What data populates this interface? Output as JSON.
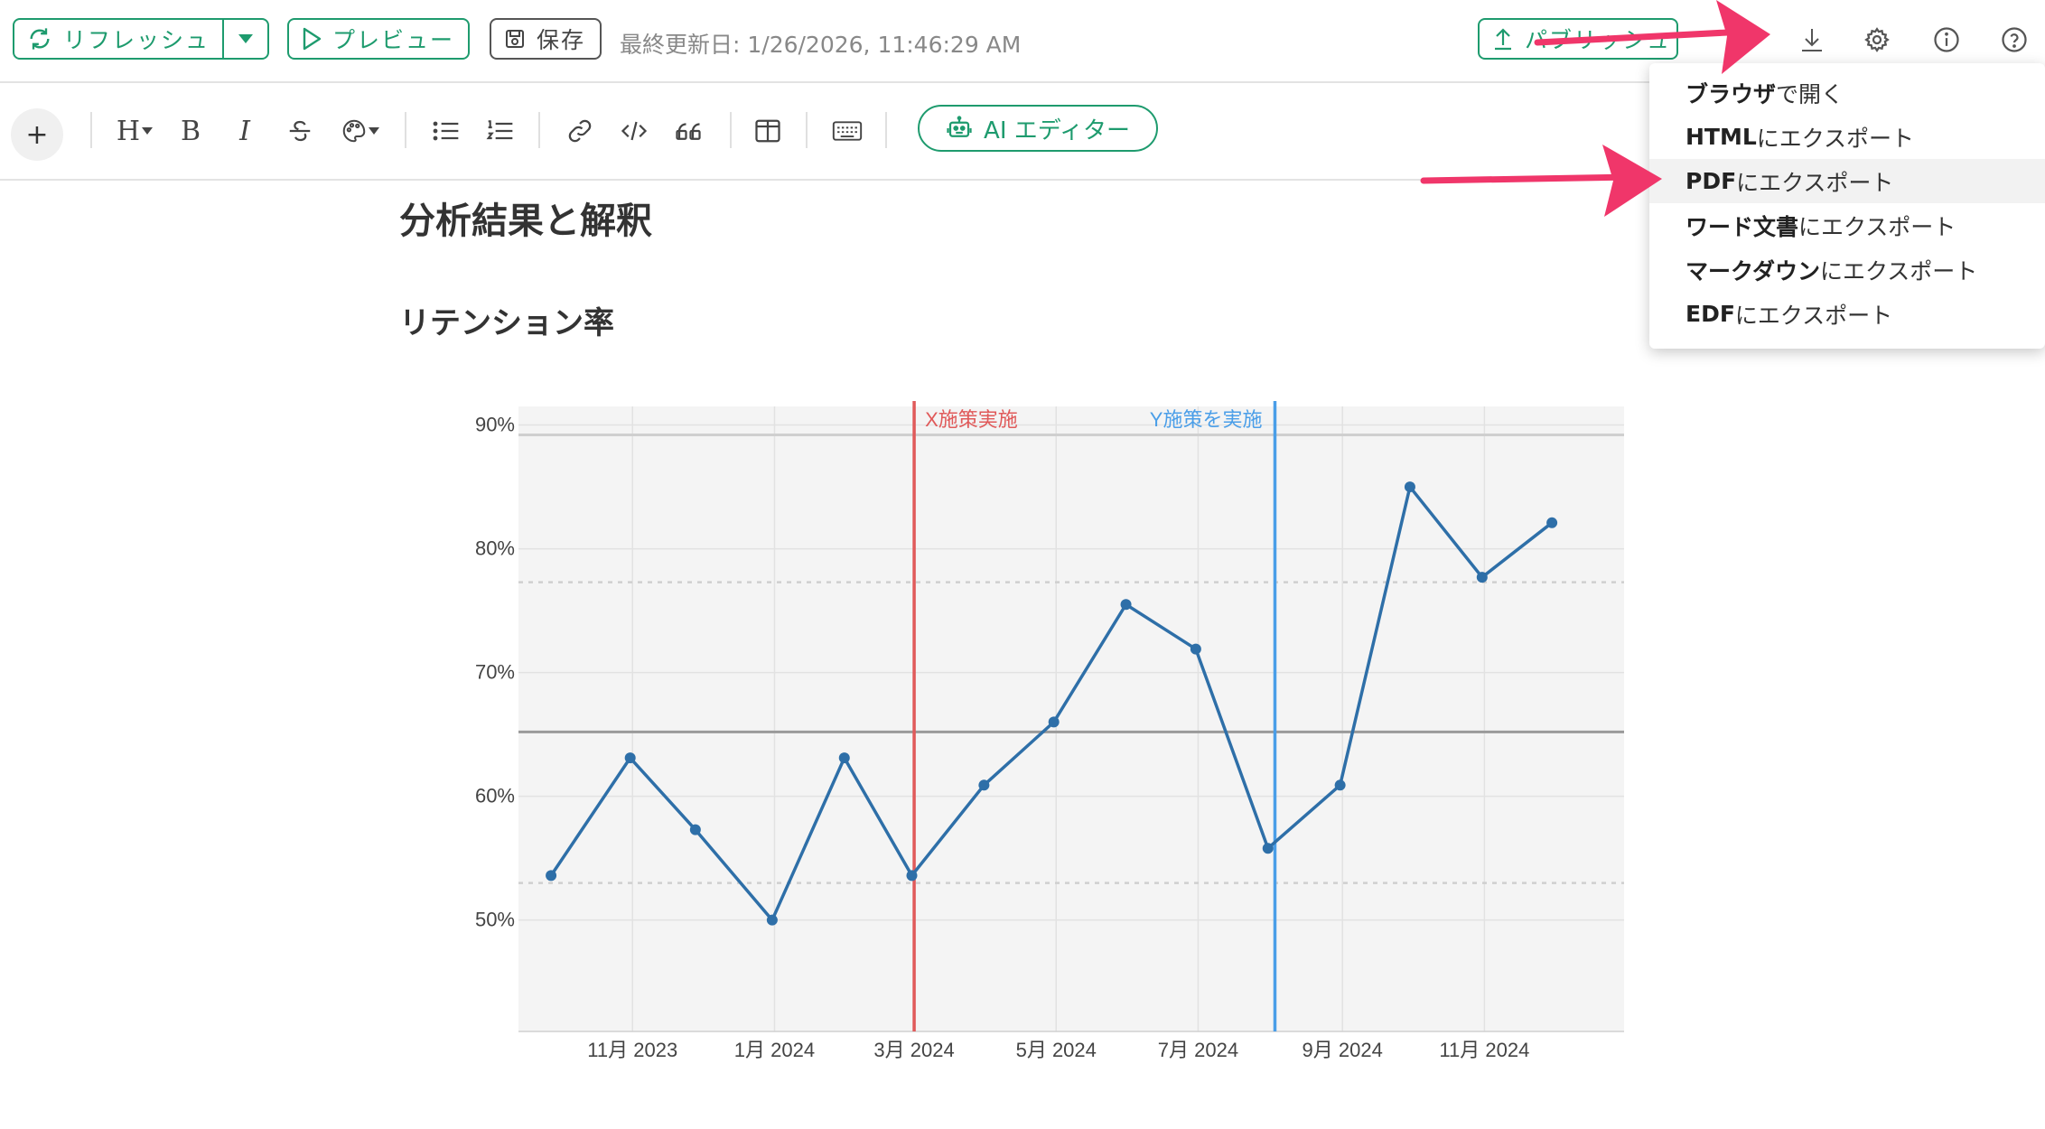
{
  "toolbar": {
    "refresh_label": "リフレッシュ",
    "preview_label": "プレビュー",
    "save_label": "保存",
    "last_updated": "最終更新日: 1/26/2026, 11:46:29 AM",
    "publish_label": "パブリッシュ"
  },
  "editor_toolbar": {
    "heading_label": "H",
    "bold_label": "B",
    "italic_label": "I",
    "ai_editor_label": "AI エディター"
  },
  "document": {
    "title": "分析結果と解釈",
    "section": "リテンション率"
  },
  "export_menu": {
    "items": [
      {
        "bold": "ブラウザ",
        "rest": "で開く"
      },
      {
        "bold": "HTML",
        "rest": "にエクスポート"
      },
      {
        "bold": "PDF",
        "rest": "にエクスポート"
      },
      {
        "bold": "ワード文書",
        "rest": "にエクスポート"
      },
      {
        "bold": "マークダウン",
        "rest": "にエクスポート"
      },
      {
        "bold": "EDF",
        "rest": "にエクスポート"
      }
    ],
    "highlighted_index": 2
  },
  "colors": {
    "accent": "#1e9b6e",
    "line": "#2e6fa8",
    "marker_x": "#e05a5a",
    "marker_y": "#4a9ee8",
    "arrow": "#f0366a"
  },
  "chart_data": {
    "type": "line",
    "title": "",
    "xlabel": "",
    "ylabel": "",
    "x": [
      "2023-09-27",
      "2023-10-31",
      "2023-11-28",
      "2023-12-31",
      "2024-01-31",
      "2024-02-29",
      "2024-03-31",
      "2024-04-30",
      "2024-05-31",
      "2024-06-30",
      "2024-07-31",
      "2024-08-31",
      "2024-09-30",
      "2024-10-31",
      "2024-11-30"
    ],
    "values": [
      53.6,
      63.1,
      57.3,
      50.0,
      63.1,
      53.6,
      60.9,
      66.0,
      75.5,
      71.9,
      55.8,
      60.9,
      85.0,
      77.7,
      82.1
    ],
    "ylim": [
      41,
      91.5
    ],
    "xlim": [
      "2023-09-13",
      "2024-12-31"
    ],
    "y_ticks": [
      50,
      60,
      70,
      80,
      90
    ],
    "y_tick_labels": [
      "50%",
      "60%",
      "70%",
      "80%",
      "90%"
    ],
    "x_ticks": [
      "2023-11-01",
      "2024-01-01",
      "2024-03-01",
      "2024-05-01",
      "2024-07-01",
      "2024-09-01",
      "2024-11-01"
    ],
    "x_tick_labels": [
      "11月 2023",
      "1月 2024",
      "3月 2024",
      "5月 2024",
      "7月 2024",
      "9月 2024",
      "11月 2024"
    ],
    "mean": 65.2,
    "upper_limit": 77.3,
    "lower_limit": 53.0,
    "max_line": 89.2,
    "vlines": [
      {
        "date": "2024-03-01",
        "label": "X施策実施"
      },
      {
        "date": "2024-08-03",
        "label": "Y施策を実施"
      }
    ],
    "grid": true,
    "legend": "none"
  }
}
